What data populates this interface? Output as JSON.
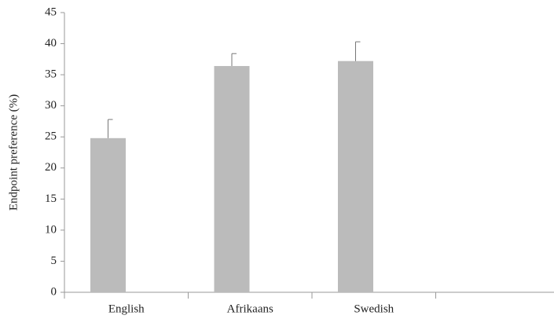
{
  "chart_data": {
    "type": "bar",
    "y_label": "Endpoint preference (%)",
    "categories": [
      "English",
      "Afrikaans",
      "Swedish",
      null
    ],
    "values": [
      24.8,
      36.4,
      37.2,
      null
    ],
    "errors": [
      3.0,
      2.0,
      3.1,
      null
    ],
    "color": "#bbbbbb",
    "ylim": [
      0,
      45
    ],
    "yticks": [
      0,
      5,
      10,
      15,
      20,
      25,
      30,
      35,
      40,
      45
    ],
    "grid": false
  }
}
